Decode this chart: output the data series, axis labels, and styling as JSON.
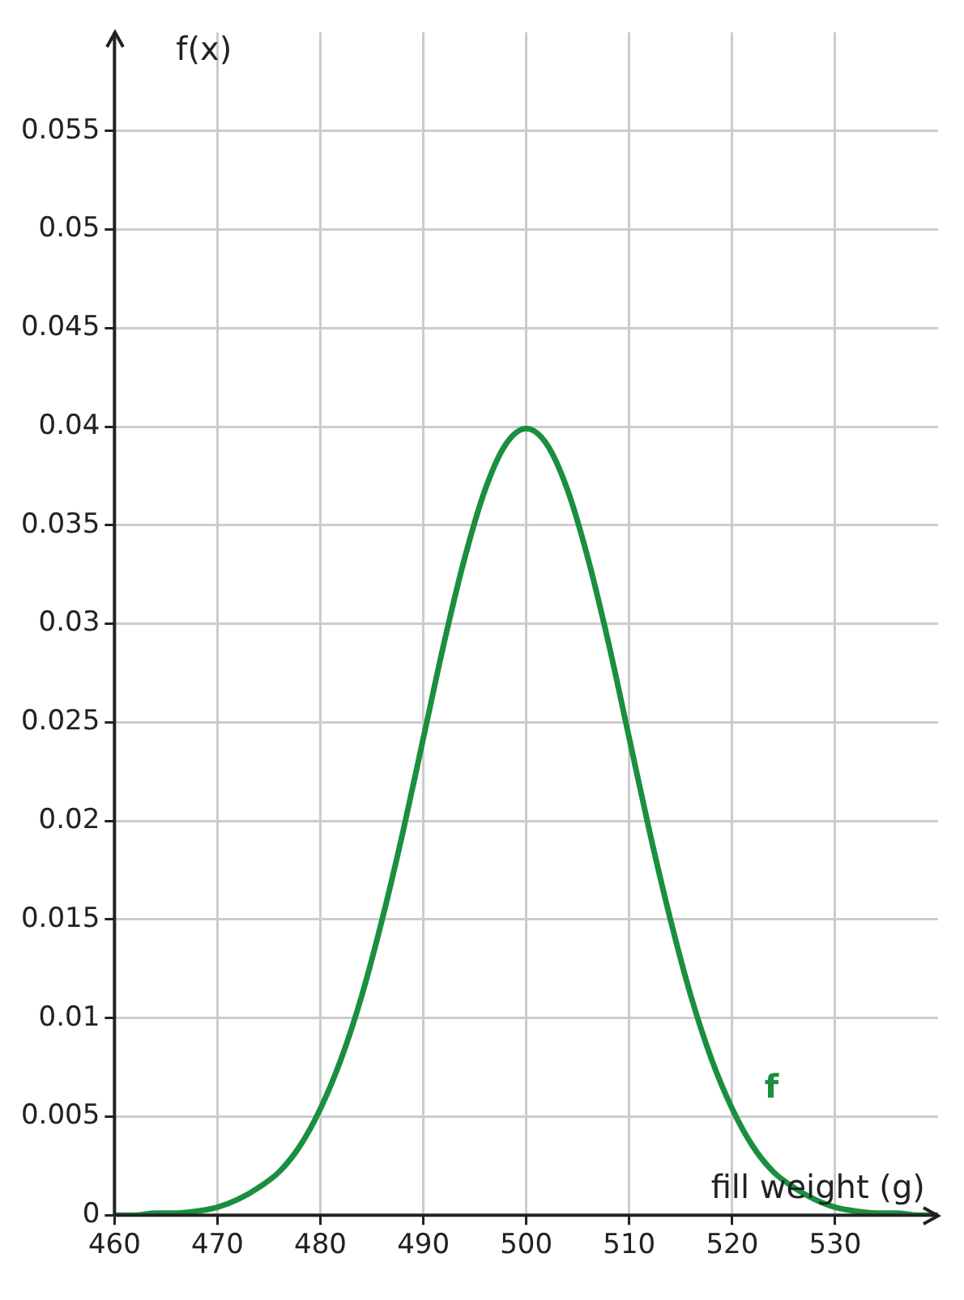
{
  "chart_data": {
    "type": "line",
    "xlabel": "fill weight (g)",
    "ylabel": "f(x)",
    "x": [
      460,
      462,
      464,
      466,
      468,
      470,
      472,
      474,
      476,
      478,
      480,
      482,
      484,
      486,
      488,
      490,
      492,
      494,
      496,
      498,
      500,
      502,
      504,
      506,
      508,
      510,
      512,
      514,
      516,
      518,
      520,
      522,
      524,
      526,
      528,
      530,
      532,
      534,
      536,
      538,
      540
    ],
    "series": [
      {
        "name": "f",
        "color": "#1a8f3f",
        "values": [
          0.0,
          0.0,
          0.0001,
          0.0001,
          0.0002,
          0.0004,
          0.0008,
          0.0014,
          0.0022,
          0.0035,
          0.0054,
          0.0079,
          0.0111,
          0.015,
          0.0194,
          0.0242,
          0.029,
          0.0333,
          0.0368,
          0.0391,
          0.0399,
          0.0391,
          0.0368,
          0.0333,
          0.029,
          0.0242,
          0.0194,
          0.015,
          0.0111,
          0.0079,
          0.0054,
          0.0035,
          0.0022,
          0.0014,
          0.0008,
          0.0004,
          0.0002,
          0.0001,
          0.0001,
          0.0,
          0.0
        ]
      }
    ],
    "xlim": [
      460,
      540
    ],
    "xticks": [
      460,
      470,
      480,
      490,
      500,
      510,
      520,
      530
    ],
    "ylim": [
      0,
      0.06
    ],
    "yticks": [
      0,
      0.005,
      0.01,
      0.015,
      0.02,
      0.025,
      0.03,
      0.035,
      0.04,
      0.045,
      0.05,
      0.055
    ],
    "grid": true,
    "legend": false,
    "marker": "none",
    "line_style": "solid"
  }
}
